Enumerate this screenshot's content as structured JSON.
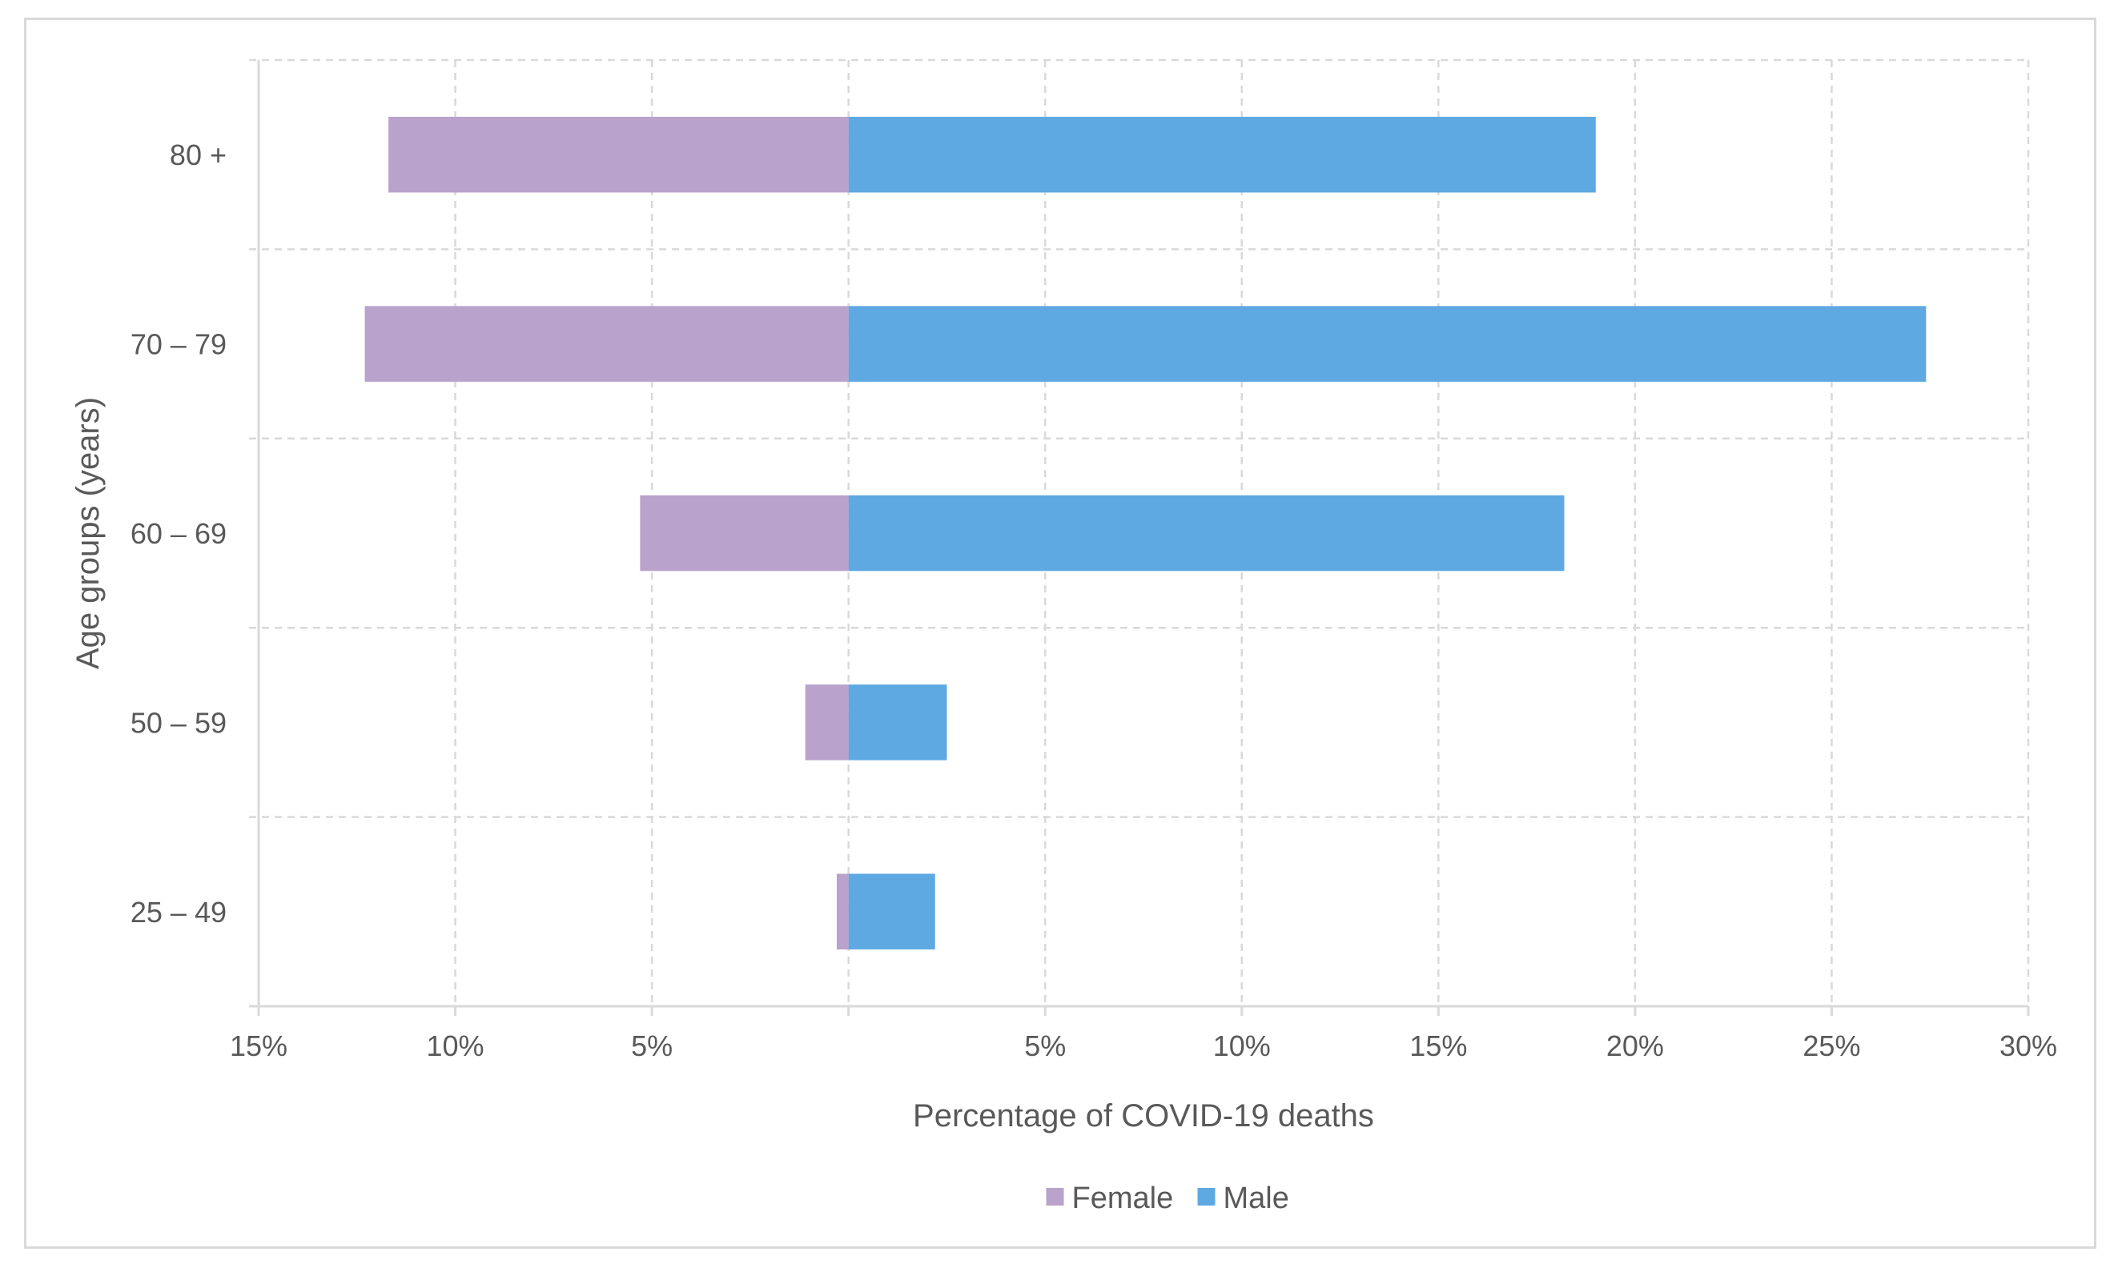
{
  "chart_data": {
    "type": "bar",
    "orientation": "horizontal",
    "layout": "population-pyramid",
    "title": "",
    "xlabel": "Percentage of COVID-19 deaths",
    "ylabel": "Age groups (years)",
    "categories": [
      "80 +",
      "70 – 79",
      "60 – 69",
      "50 – 59",
      "25 – 49"
    ],
    "series": [
      {
        "name": "Female",
        "values": [
          11.7,
          12.3,
          5.3,
          1.1,
          0.3
        ],
        "color": "#b9a2cb",
        "direction": "left"
      },
      {
        "name": "Male",
        "values": [
          19.0,
          27.4,
          18.2,
          2.5,
          2.2
        ],
        "color": "#5ea9e2",
        "direction": "right"
      }
    ],
    "xlim": [
      -15,
      30
    ],
    "x_ticks": [
      -15,
      -10,
      -5,
      0,
      5,
      10,
      15,
      20,
      25,
      30
    ],
    "x_tick_labels": [
      "15%",
      "10%",
      "5%",
      "",
      "5%",
      "10%",
      "15%",
      "20%",
      "25%",
      "30%"
    ],
    "grid": true,
    "legend_position": "bottom-center"
  }
}
